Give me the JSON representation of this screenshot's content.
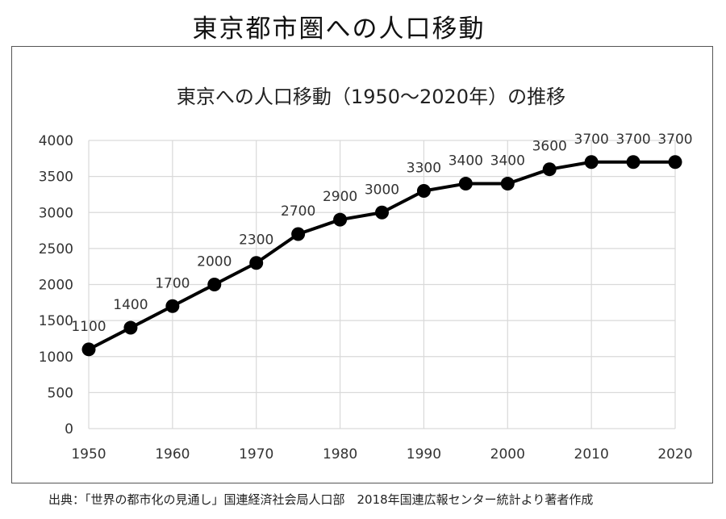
{
  "page": {
    "title": "東京都市圏への人口移動",
    "source": "出典：「世界の都市化の見通し」国連経済社会局人口部　2018年国連広報センター統計より著者作成"
  },
  "chart_data": {
    "type": "line",
    "title": "東京への人口移動（1950～2020年）の推移",
    "xlabel": "",
    "ylabel": "",
    "x": [
      1950,
      1955,
      1960,
      1965,
      1970,
      1975,
      1980,
      1985,
      1990,
      1995,
      2000,
      2005,
      2010,
      2015,
      2020
    ],
    "series": [
      {
        "values": [
          1100,
          1400,
          1700,
          2000,
          2300,
          2700,
          2900,
          3000,
          3300,
          3400,
          3400,
          3600,
          3700,
          3700,
          3700
        ],
        "color": "#000000"
      }
    ],
    "xlim": [
      1950,
      2020
    ],
    "ylim": [
      0,
      4000
    ],
    "xticks": [
      1950,
      1960,
      1970,
      1980,
      1990,
      2000,
      2010,
      2020
    ],
    "yticks": [
      0,
      500,
      1000,
      1500,
      2000,
      2500,
      3000,
      3500,
      4000
    ],
    "grid": true,
    "legend": "none",
    "gridColor": "#d9d9d9"
  }
}
